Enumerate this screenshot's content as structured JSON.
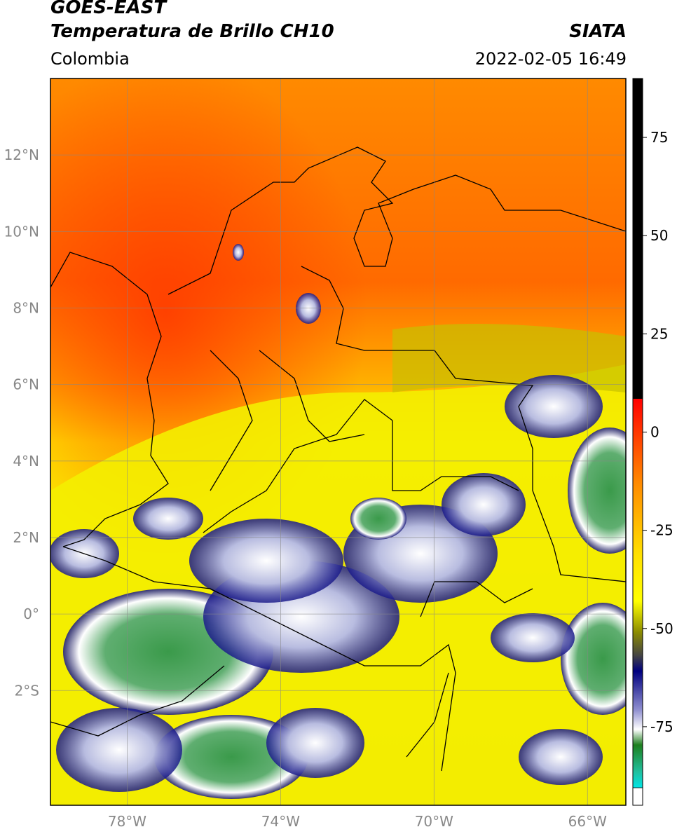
{
  "header": {
    "satellite": "GOES-EAST",
    "product": "Temperatura de Brillo CH10",
    "region": "Colombia",
    "agency": "SIATA",
    "datetime": "2022-02-05 16:49"
  },
  "map": {
    "lon_range": [
      -80,
      -65
    ],
    "lat_range": [
      -5,
      14
    ],
    "lat_ticks": [
      {
        "value": 12,
        "label": "12°N"
      },
      {
        "value": 10,
        "label": "10°N"
      },
      {
        "value": 8,
        "label": "8°N"
      },
      {
        "value": 6,
        "label": "6°N"
      },
      {
        "value": 4,
        "label": "4°N"
      },
      {
        "value": 2,
        "label": "2°N"
      },
      {
        "value": 0,
        "label": "0°"
      },
      {
        "value": -2,
        "label": "2°S"
      }
    ],
    "lon_ticks": [
      {
        "value": -78,
        "label": "78°W"
      },
      {
        "value": -74,
        "label": "74°W"
      },
      {
        "value": -70,
        "label": "70°W"
      },
      {
        "value": -66,
        "label": "66°W"
      }
    ],
    "grid": true
  },
  "colorbar": {
    "range": [
      -95,
      90
    ],
    "ticks": [
      {
        "value": 75,
        "label": "75"
      },
      {
        "value": 50,
        "label": "50"
      },
      {
        "value": 25,
        "label": "25"
      },
      {
        "value": 0,
        "label": "0"
      },
      {
        "value": -25,
        "label": "-25"
      },
      {
        "value": -50,
        "label": "-50"
      },
      {
        "value": -75,
        "label": "-75"
      }
    ],
    "colors": {
      "above_8": "#000000",
      "red": "#ff0000",
      "orange": "#ff8c00",
      "yellow": "#ffff00",
      "olive": "#8c8c00",
      "navy": "#00007f",
      "white": "#ffffff",
      "green": "#1e7f1e",
      "teal": "#20c0a0",
      "cyan": "#00e5e5"
    }
  }
}
